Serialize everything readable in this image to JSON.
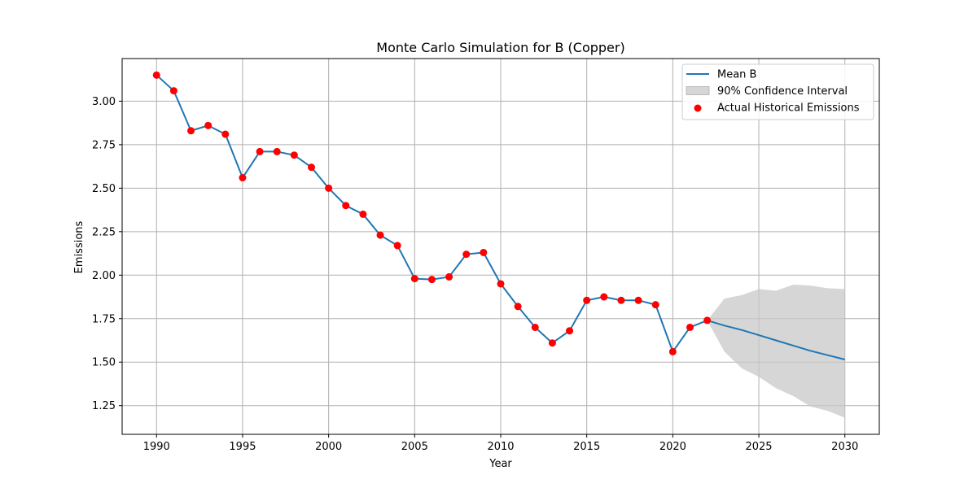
{
  "chart_data": {
    "type": "line",
    "title": "Monte Carlo Simulation for B (Copper)",
    "xlabel": "Year",
    "ylabel": "Emissions",
    "xlim": [
      1988,
      2032
    ],
    "ylim": [
      1.085,
      3.245
    ],
    "xticks": [
      1990,
      1995,
      2000,
      2005,
      2010,
      2015,
      2020,
      2025,
      2030
    ],
    "yticks": [
      1.25,
      1.5,
      1.75,
      2.0,
      2.25,
      2.5,
      2.75,
      3.0
    ],
    "ytick_labels": [
      "1.25",
      "1.50",
      "1.75",
      "2.00",
      "2.25",
      "2.50",
      "2.75",
      "3.00"
    ],
    "grid": true,
    "legend_position": "top-right",
    "colors": {
      "mean_line": "#1f77b4",
      "interval_fill": "#c8c8c8",
      "historical_points": "#ff0000",
      "grid": "#b0b0b0"
    },
    "legend": [
      {
        "label": "Mean B",
        "kind": "line"
      },
      {
        "label": "90% Confidence Interval",
        "kind": "fill"
      },
      {
        "label": "Actual Historical Emissions",
        "kind": "marker"
      }
    ],
    "mean_series": {
      "name": "Mean B",
      "x": [
        1990,
        1991,
        1992,
        1993,
        1994,
        1995,
        1996,
        1997,
        1998,
        1999,
        2000,
        2001,
        2002,
        2003,
        2004,
        2005,
        2006,
        2007,
        2008,
        2009,
        2010,
        2011,
        2012,
        2013,
        2014,
        2015,
        2016,
        2017,
        2018,
        2019,
        2020,
        2021,
        2022,
        2023,
        2024,
        2025,
        2026,
        2027,
        2028,
        2029,
        2030
      ],
      "y": [
        3.15,
        3.06,
        2.83,
        2.86,
        2.81,
        2.56,
        2.71,
        2.71,
        2.69,
        2.62,
        2.5,
        2.4,
        2.35,
        2.23,
        2.17,
        1.98,
        1.975,
        1.99,
        2.12,
        2.13,
        1.95,
        1.82,
        1.7,
        1.61,
        1.68,
        1.855,
        1.875,
        1.855,
        1.855,
        1.83,
        1.56,
        1.7,
        1.74,
        1.71,
        1.685,
        1.655,
        1.625,
        1.595,
        1.565,
        1.54,
        1.515
      ]
    },
    "confidence_interval": {
      "name": "90% Confidence Interval",
      "x": [
        2022,
        2023,
        2024,
        2025,
        2026,
        2027,
        2028,
        2029,
        2030
      ],
      "lower": [
        1.74,
        1.56,
        1.465,
        1.415,
        1.35,
        1.305,
        1.245,
        1.22,
        1.18
      ],
      "upper": [
        1.74,
        1.865,
        1.885,
        1.92,
        1.91,
        1.945,
        1.94,
        1.925,
        1.92
      ]
    },
    "historical": {
      "name": "Actual Historical Emissions",
      "x": [
        1990,
        1991,
        1992,
        1993,
        1994,
        1995,
        1996,
        1997,
        1998,
        1999,
        2000,
        2001,
        2002,
        2003,
        2004,
        2005,
        2006,
        2007,
        2008,
        2009,
        2010,
        2011,
        2012,
        2013,
        2014,
        2015,
        2016,
        2017,
        2018,
        2019,
        2020,
        2021,
        2022
      ],
      "y": [
        3.15,
        3.06,
        2.83,
        2.86,
        2.81,
        2.56,
        2.71,
        2.71,
        2.69,
        2.62,
        2.5,
        2.4,
        2.35,
        2.23,
        2.17,
        1.98,
        1.975,
        1.99,
        2.12,
        2.13,
        1.95,
        1.82,
        1.7,
        1.61,
        1.68,
        1.855,
        1.875,
        1.855,
        1.855,
        1.83,
        1.56,
        1.7,
        1.74
      ]
    }
  }
}
